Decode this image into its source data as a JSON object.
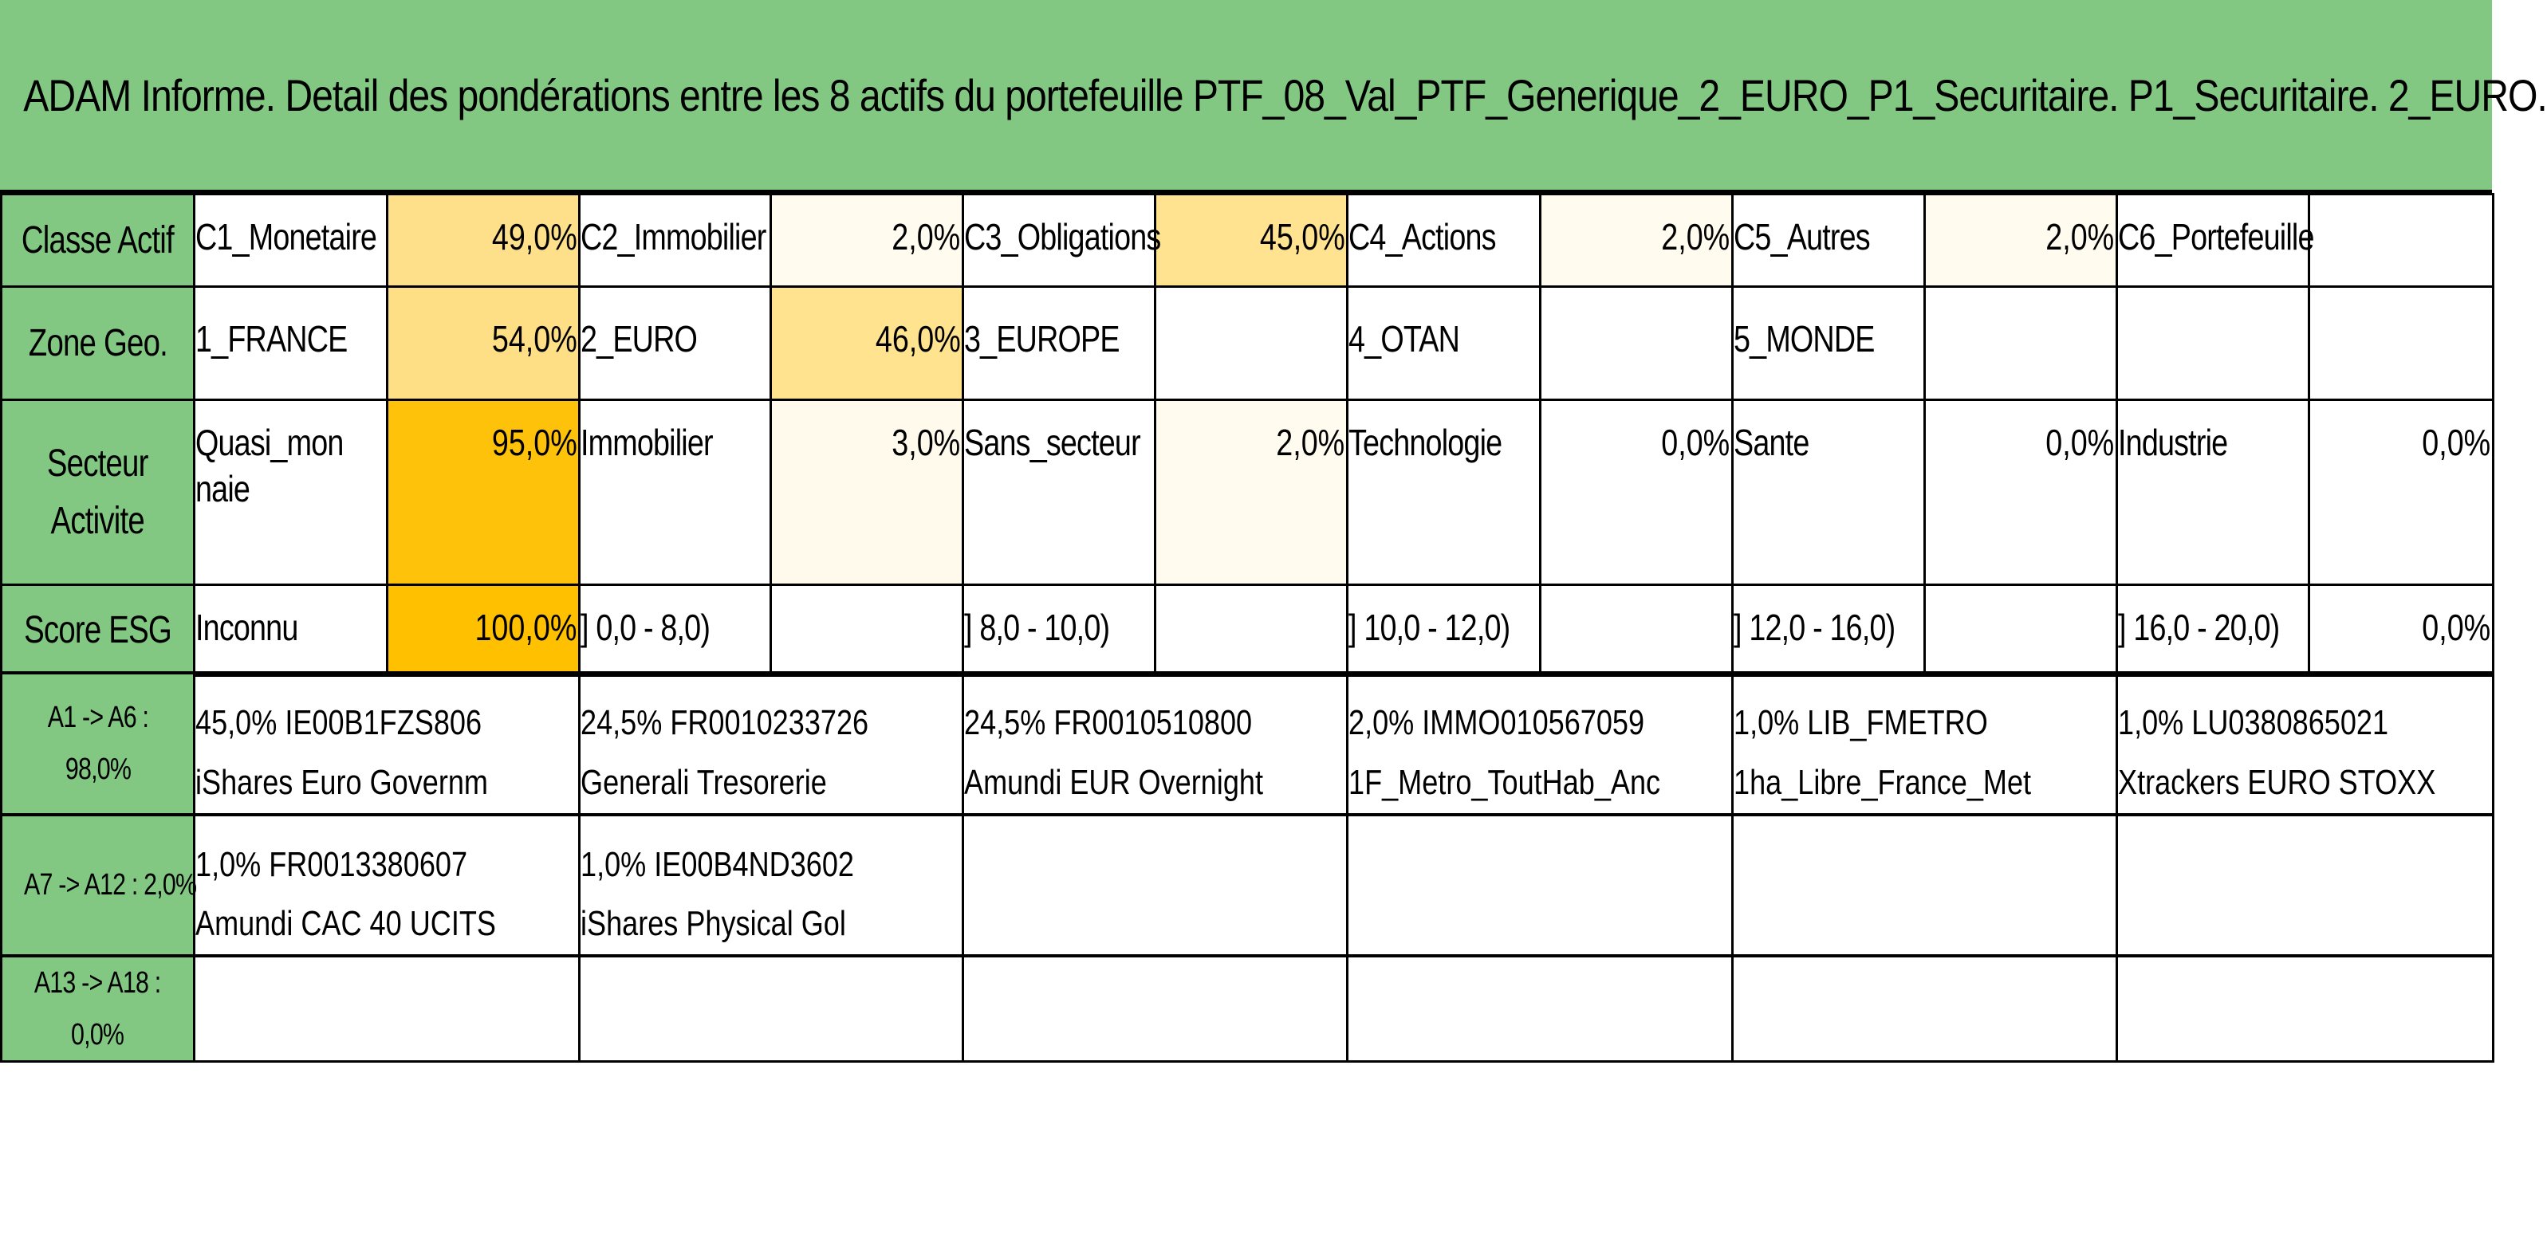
{
  "title": "ADAM Informe. Detail des pondérations entre les 8 actifs du portefeuille PTF_08_Val_PTF_Generique_2_EURO_P1_Securitaire. P1_Securitaire. 2_EURO.",
  "colors": {
    "header_green": "#82c882",
    "heat_high": "#ffc000",
    "heat_mid": "#ffe699",
    "heat_low": "#fffbef",
    "white": "#ffffff"
  },
  "rows": [
    {
      "header": "Classe Actif",
      "cells": [
        {
          "label": "C1_Monetaire",
          "value": "49,0%",
          "heat": "#ffe08a"
        },
        {
          "label": "C2_Immobilier",
          "value": "2,0%",
          "heat": "#fffbef"
        },
        {
          "label": "C3_Obligations",
          "value": "45,0%",
          "heat": "#ffe390"
        },
        {
          "label": "C4_Actions",
          "value": "2,0%",
          "heat": "#fffbef"
        },
        {
          "label": "C5_Autres",
          "value": "2,0%",
          "heat": "#fffbef"
        },
        {
          "label": "C6_Portefeuille",
          "value": "",
          "heat": "#ffffff"
        }
      ]
    },
    {
      "header": "Zone Geo.",
      "cells": [
        {
          "label": "1_FRANCE",
          "value": "54,0%",
          "heat": "#ffdf85"
        },
        {
          "label": "2_EURO",
          "value": "46,0%",
          "heat": "#ffe38f"
        },
        {
          "label": "3_EUROPE",
          "value": "",
          "heat": "#ffffff"
        },
        {
          "label": "4_OTAN",
          "value": "",
          "heat": "#ffffff"
        },
        {
          "label": "5_MONDE",
          "value": "",
          "heat": "#ffffff"
        },
        {
          "label": "",
          "value": "",
          "heat": "#ffffff"
        }
      ]
    },
    {
      "header_lines": [
        "Secteur",
        "Activite"
      ],
      "cells": [
        {
          "label": "Quasi_monnaie",
          "value": "95,0%",
          "heat": "#ffc20a"
        },
        {
          "label": "Immobilier",
          "value": "3,0%",
          "heat": "#fffaeb"
        },
        {
          "label": "Sans_secteur",
          "value": "2,0%",
          "heat": "#fffbef"
        },
        {
          "label": "Technologie",
          "value": "0,0%",
          "heat": "#ffffff"
        },
        {
          "label": "Sante",
          "value": "0,0%",
          "heat": "#ffffff"
        },
        {
          "label": "Industrie",
          "value": "0,0%",
          "heat": "#ffffff"
        }
      ]
    },
    {
      "header": "Score ESG",
      "cells": [
        {
          "label": "Inconnu",
          "value": "100,0%",
          "heat": "#ffc000"
        },
        {
          "label": "] 0,0 - 8,0)",
          "value": "",
          "heat": "#ffffff"
        },
        {
          "label": "] 8,0 - 10,0)",
          "value": "",
          "heat": "#ffffff"
        },
        {
          "label": "] 10,0 - 12,0)",
          "value": "",
          "heat": "#ffffff"
        },
        {
          "label": "] 12,0 - 16,0)",
          "value": "",
          "heat": "#ffffff"
        },
        {
          "label": "] 16,0 - 20,0)",
          "value": "0,0%",
          "heat": "#ffffff"
        }
      ]
    }
  ],
  "asset_rows": [
    {
      "header_lines": [
        "A1 -> A6 :",
        "98,0%"
      ],
      "assets": [
        {
          "line1": "45,0% IE00B1FZS806",
          "line2": "iShares Euro Governm"
        },
        {
          "line1": "24,5% FR0010233726",
          "line2": "Generali Tresorerie"
        },
        {
          "line1": "24,5% FR0010510800",
          "line2": "Amundi EUR Overnight"
        },
        {
          "line1": "2,0% IMMO010567059",
          "line2": "1F_Metro_ToutHab_Anc"
        },
        {
          "line1": "1,0% LIB_FMETRO",
          "line2": "1ha_Libre_France_Met"
        },
        {
          "line1": "1,0% LU0380865021",
          "line2": "Xtrackers EURO STOXX"
        }
      ]
    },
    {
      "header_lines": [
        "A7 -> A12 : 2,0%"
      ],
      "assets": [
        {
          "line1": "1,0% FR0013380607",
          "line2": "Amundi CAC 40 UCITS"
        },
        {
          "line1": "1,0% IE00B4ND3602",
          "line2": "iShares Physical Gol"
        },
        {
          "line1": "",
          "line2": ""
        },
        {
          "line1": "",
          "line2": ""
        },
        {
          "line1": "",
          "line2": ""
        },
        {
          "line1": "",
          "line2": ""
        }
      ]
    },
    {
      "header_lines": [
        "A13 -> A18 :",
        "0,0%"
      ],
      "assets": [
        {
          "line1": "",
          "line2": ""
        },
        {
          "line1": "",
          "line2": ""
        },
        {
          "line1": "",
          "line2": ""
        },
        {
          "line1": "",
          "line2": ""
        },
        {
          "line1": "",
          "line2": ""
        },
        {
          "line1": "",
          "line2": ""
        }
      ]
    }
  ]
}
